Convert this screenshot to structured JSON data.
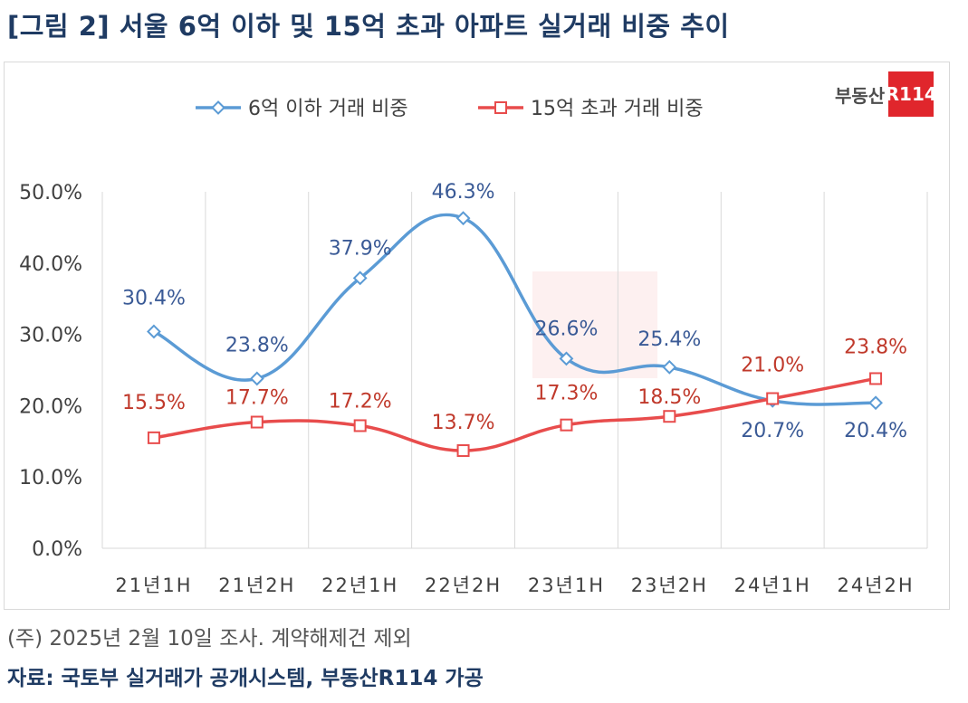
{
  "figure_title": "[그림 2] 서울 6억 이하 및 15억 초과 아파트 실거래 비중 추이",
  "note": "(주) 2025년 2월 10일 조사. 계약해제건 제외",
  "source": "자료: 국토부 실거래가 공개시스템, 부동산R114 가공",
  "logo": {
    "text": "부동산",
    "mark": "R114",
    "color": "#e0262c"
  },
  "chart_data": {
    "type": "line",
    "categories": [
      "21년1H",
      "21년2H",
      "22년1H",
      "22년2H",
      "23년1H",
      "23년2H",
      "24년1H",
      "24년2H"
    ],
    "series": [
      {
        "name": "6억 이하 거래 비중",
        "values": [
          30.4,
          23.8,
          37.9,
          46.3,
          26.6,
          25.4,
          20.7,
          20.4
        ],
        "labels": [
          "30.4%",
          "23.8%",
          "37.9%",
          "46.3%",
          "26.6%",
          "25.4%",
          "20.7%",
          "20.4%"
        ],
        "color": "#5b9bd5",
        "label_color": "#3a5a96",
        "marker": "diamond"
      },
      {
        "name": "15억 초과 거래 비중",
        "values": [
          15.5,
          17.7,
          17.2,
          13.7,
          17.3,
          18.5,
          21.0,
          23.8
        ],
        "labels": [
          "15.5%",
          "17.7%",
          "17.2%",
          "13.7%",
          "17.3%",
          "18.5%",
          "21.0%",
          "23.8%"
        ],
        "color": "#e84c4c",
        "label_color": "#c0392b",
        "marker": "square"
      }
    ],
    "ylim": [
      0,
      50
    ],
    "yticks": [
      0,
      10,
      20,
      30,
      40,
      50
    ],
    "ytick_labels": [
      "0.0%",
      "10.0%",
      "20.0%",
      "30.0%",
      "40.0%",
      "50.0%"
    ],
    "grid": "vertical",
    "legend_position": "top",
    "smooth": true
  }
}
